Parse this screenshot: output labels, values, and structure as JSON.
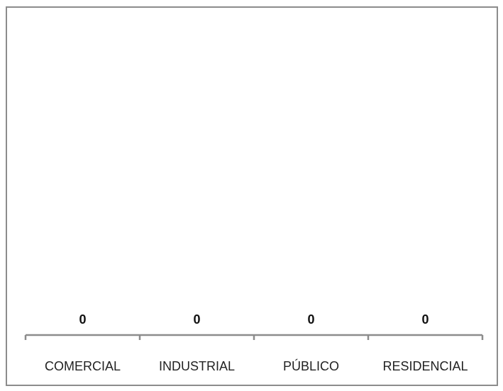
{
  "chart_data": {
    "type": "bar",
    "categories": [
      "COMERCIAL",
      "INDUSTRIAL",
      "PÚBLICO",
      "RESIDENCIAL"
    ],
    "values": [
      0,
      0,
      0,
      0
    ],
    "data_labels": [
      "0",
      "0",
      "0",
      "0"
    ],
    "title": "",
    "xlabel": "",
    "ylabel": "",
    "grid": false,
    "legend": "none",
    "colors": {
      "border": "#8c8c8c",
      "axis": "#8c8c8c",
      "text": "#222222"
    }
  }
}
